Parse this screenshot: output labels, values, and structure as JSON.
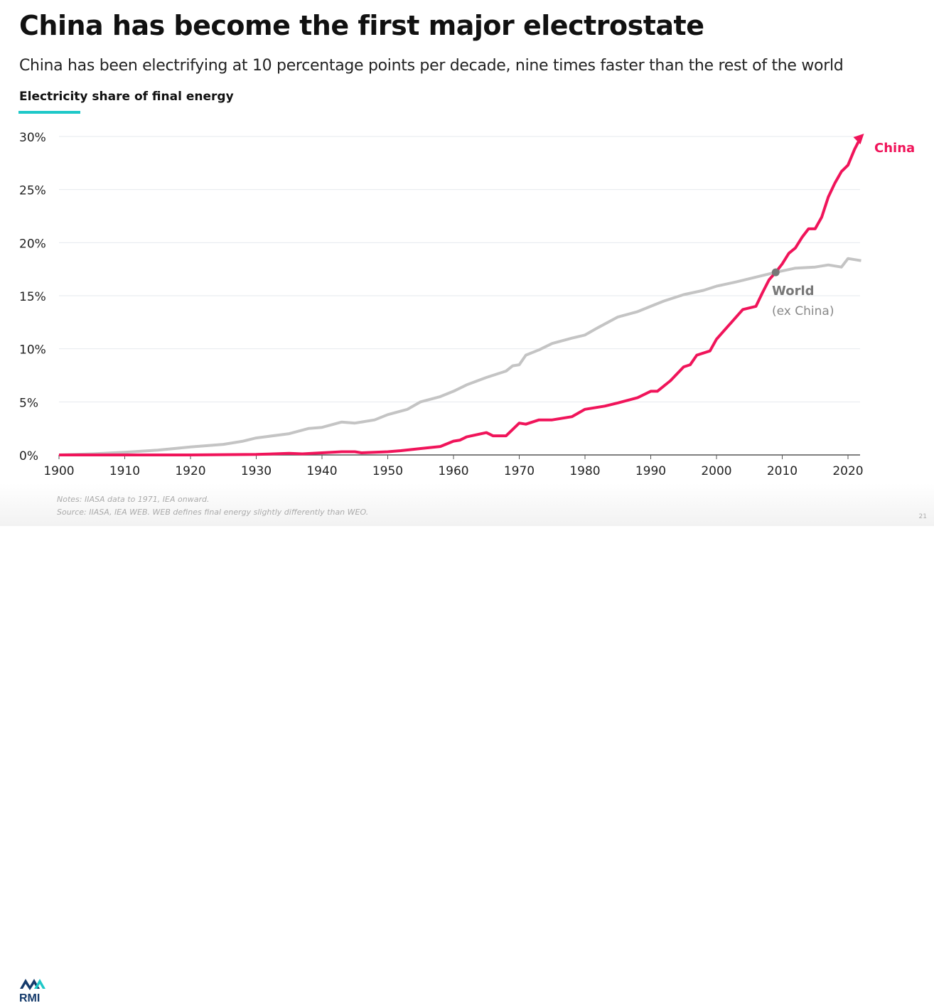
{
  "header": {
    "title": "China has become the first major electrostate",
    "subtitle": "China has been electrifying at 10 percentage points per decade, nine times faster than the rest of the world"
  },
  "footer": {
    "notes": "Notes: IIASA data to 1971, IEA onward.",
    "source": "Source: IIASA, IEA WEB. WEB defines final energy slightly differently than WEO.",
    "page_number": "21",
    "logo_text": "RMI"
  },
  "colors": {
    "china": "#f0145a",
    "world": "#c4c4c4",
    "accent": "#1ec8c8",
    "marker": "#777777"
  },
  "chart_data": {
    "type": "line",
    "title": "Electricity share of final energy",
    "xlabel": "",
    "ylabel": "Electricity share of final energy",
    "xlim": [
      1900,
      2022
    ],
    "ylim": [
      0,
      30
    ],
    "xticks": [
      1900,
      1910,
      1920,
      1930,
      1940,
      1950,
      1960,
      1970,
      1980,
      1990,
      2000,
      2010,
      2020
    ],
    "xtick_labels": [
      "1900",
      "1910",
      "1920",
      "1930",
      "1940",
      "1950",
      "1960",
      "1970",
      "1980",
      "1990",
      "2000",
      "2010",
      "2020"
    ],
    "yticks": [
      0,
      5,
      10,
      15,
      20,
      25,
      30
    ],
    "ytick_labels": [
      "0%",
      "5%",
      "10%",
      "15%",
      "20%",
      "25%",
      "30%"
    ],
    "grid": true,
    "series": [
      {
        "name": "World",
        "label": "World",
        "sublabel": "(ex China)",
        "x": [
          1900,
          1905,
          1910,
          1915,
          1920,
          1925,
          1928,
          1930,
          1935,
          1938,
          1940,
          1943,
          1945,
          1948,
          1950,
          1953,
          1955,
          1958,
          1960,
          1962,
          1965,
          1968,
          1969,
          1970,
          1971,
          1973,
          1975,
          1978,
          1980,
          1982,
          1985,
          1988,
          1990,
          1992,
          1995,
          1998,
          2000,
          2003,
          2005,
          2007,
          2009,
          2012,
          2015,
          2017,
          2019,
          2020,
          2021,
          2022
        ],
        "values": [
          0,
          0.1,
          0.25,
          0.45,
          0.75,
          1.0,
          1.3,
          1.6,
          2.0,
          2.5,
          2.6,
          3.1,
          3.0,
          3.3,
          3.8,
          4.3,
          5.0,
          5.5,
          6.0,
          6.6,
          7.3,
          7.9,
          8.4,
          8.5,
          9.4,
          9.9,
          10.5,
          11.0,
          11.3,
          12.0,
          13.0,
          13.5,
          14.0,
          14.5,
          15.1,
          15.5,
          15.9,
          16.3,
          16.6,
          16.9,
          17.2,
          17.6,
          17.7,
          17.9,
          17.7,
          18.5,
          18.4,
          18.3
        ]
      },
      {
        "name": "China",
        "label": "China",
        "x": [
          1900,
          1920,
          1930,
          1935,
          1937,
          1940,
          1943,
          1945,
          1946,
          1950,
          1952,
          1955,
          1958,
          1960,
          1961,
          1962,
          1965,
          1966,
          1968,
          1970,
          1971,
          1973,
          1975,
          1978,
          1980,
          1983,
          1985,
          1988,
          1990,
          1991,
          1993,
          1995,
          1996,
          1997,
          1999,
          2000,
          2002,
          2004,
          2006,
          2007,
          2008,
          2009,
          2010,
          2011,
          2012,
          2013,
          2014,
          2015,
          2016,
          2017,
          2018,
          2019,
          2020,
          2021,
          2022
        ],
        "values": [
          0,
          0,
          0.05,
          0.15,
          0.1,
          0.2,
          0.3,
          0.3,
          0.2,
          0.3,
          0.4,
          0.6,
          0.8,
          1.3,
          1.4,
          1.7,
          2.1,
          1.8,
          1.8,
          3.0,
          2.9,
          3.3,
          3.3,
          3.6,
          4.3,
          4.6,
          4.9,
          5.4,
          6.0,
          6.0,
          7.0,
          8.3,
          8.5,
          9.4,
          9.8,
          10.9,
          12.3,
          13.7,
          14.0,
          15.3,
          16.5,
          17.2,
          18.0,
          19.0,
          19.5,
          20.5,
          21.3,
          21.3,
          22.4,
          24.3,
          25.6,
          26.7,
          27.3,
          28.8,
          30.0
        ]
      }
    ],
    "annotations": [
      {
        "text": "World",
        "x": 2009,
        "y": 17.2,
        "type": "marker"
      }
    ]
  }
}
